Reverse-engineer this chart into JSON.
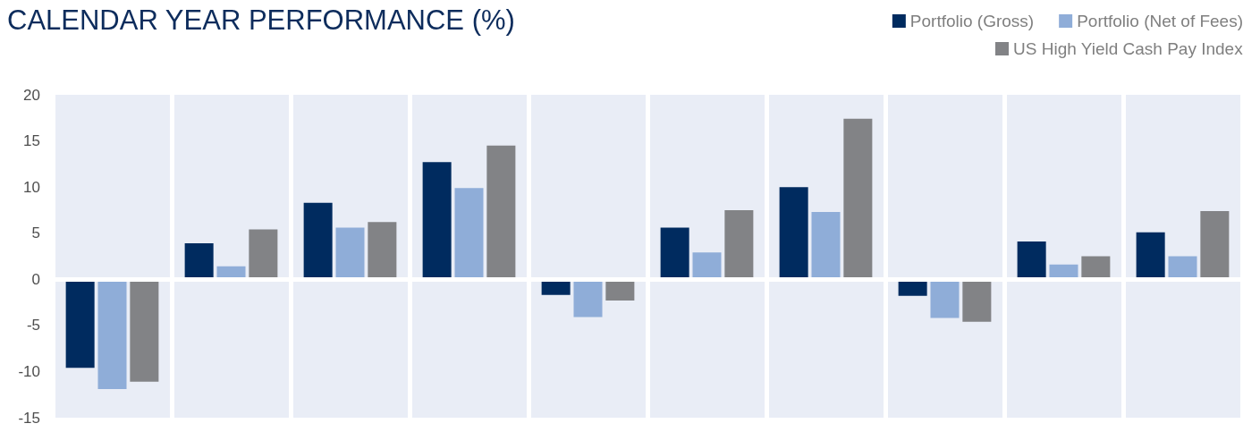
{
  "chart_data": {
    "type": "bar",
    "title": "CALENDAR YEAR PERFORMANCE (%)",
    "categories": [
      null,
      null,
      null,
      null,
      null,
      null,
      null,
      null,
      null,
      null
    ],
    "series": [
      {
        "name": "Portfolio (Gross)",
        "color": "#002b5f",
        "values": [
          -9.6,
          3.9,
          8.3,
          12.7,
          -1.7,
          5.6,
          10.0,
          -1.8,
          4.1,
          5.1
        ]
      },
      {
        "name": "Portfolio (Net of Fees)",
        "color": "#8fadd8",
        "values": [
          -11.9,
          1.4,
          5.6,
          9.9,
          -4.1,
          2.9,
          7.3,
          -4.2,
          1.6,
          2.5
        ]
      },
      {
        "name": "US High Yield Cash Pay Index",
        "color": "#828386",
        "values": [
          -11.1,
          5.4,
          6.2,
          14.5,
          -2.3,
          7.5,
          17.4,
          -4.6,
          2.5,
          7.4
        ]
      }
    ],
    "ylim": [
      -15,
      20
    ],
    "yticks": [
      -15,
      -10,
      -5,
      0,
      5,
      10,
      15,
      20
    ],
    "ref_lines": [
      {
        "axis": "y",
        "value": 0,
        "color": "#ffffff"
      }
    ],
    "grid": "x",
    "legend": "top right"
  }
}
